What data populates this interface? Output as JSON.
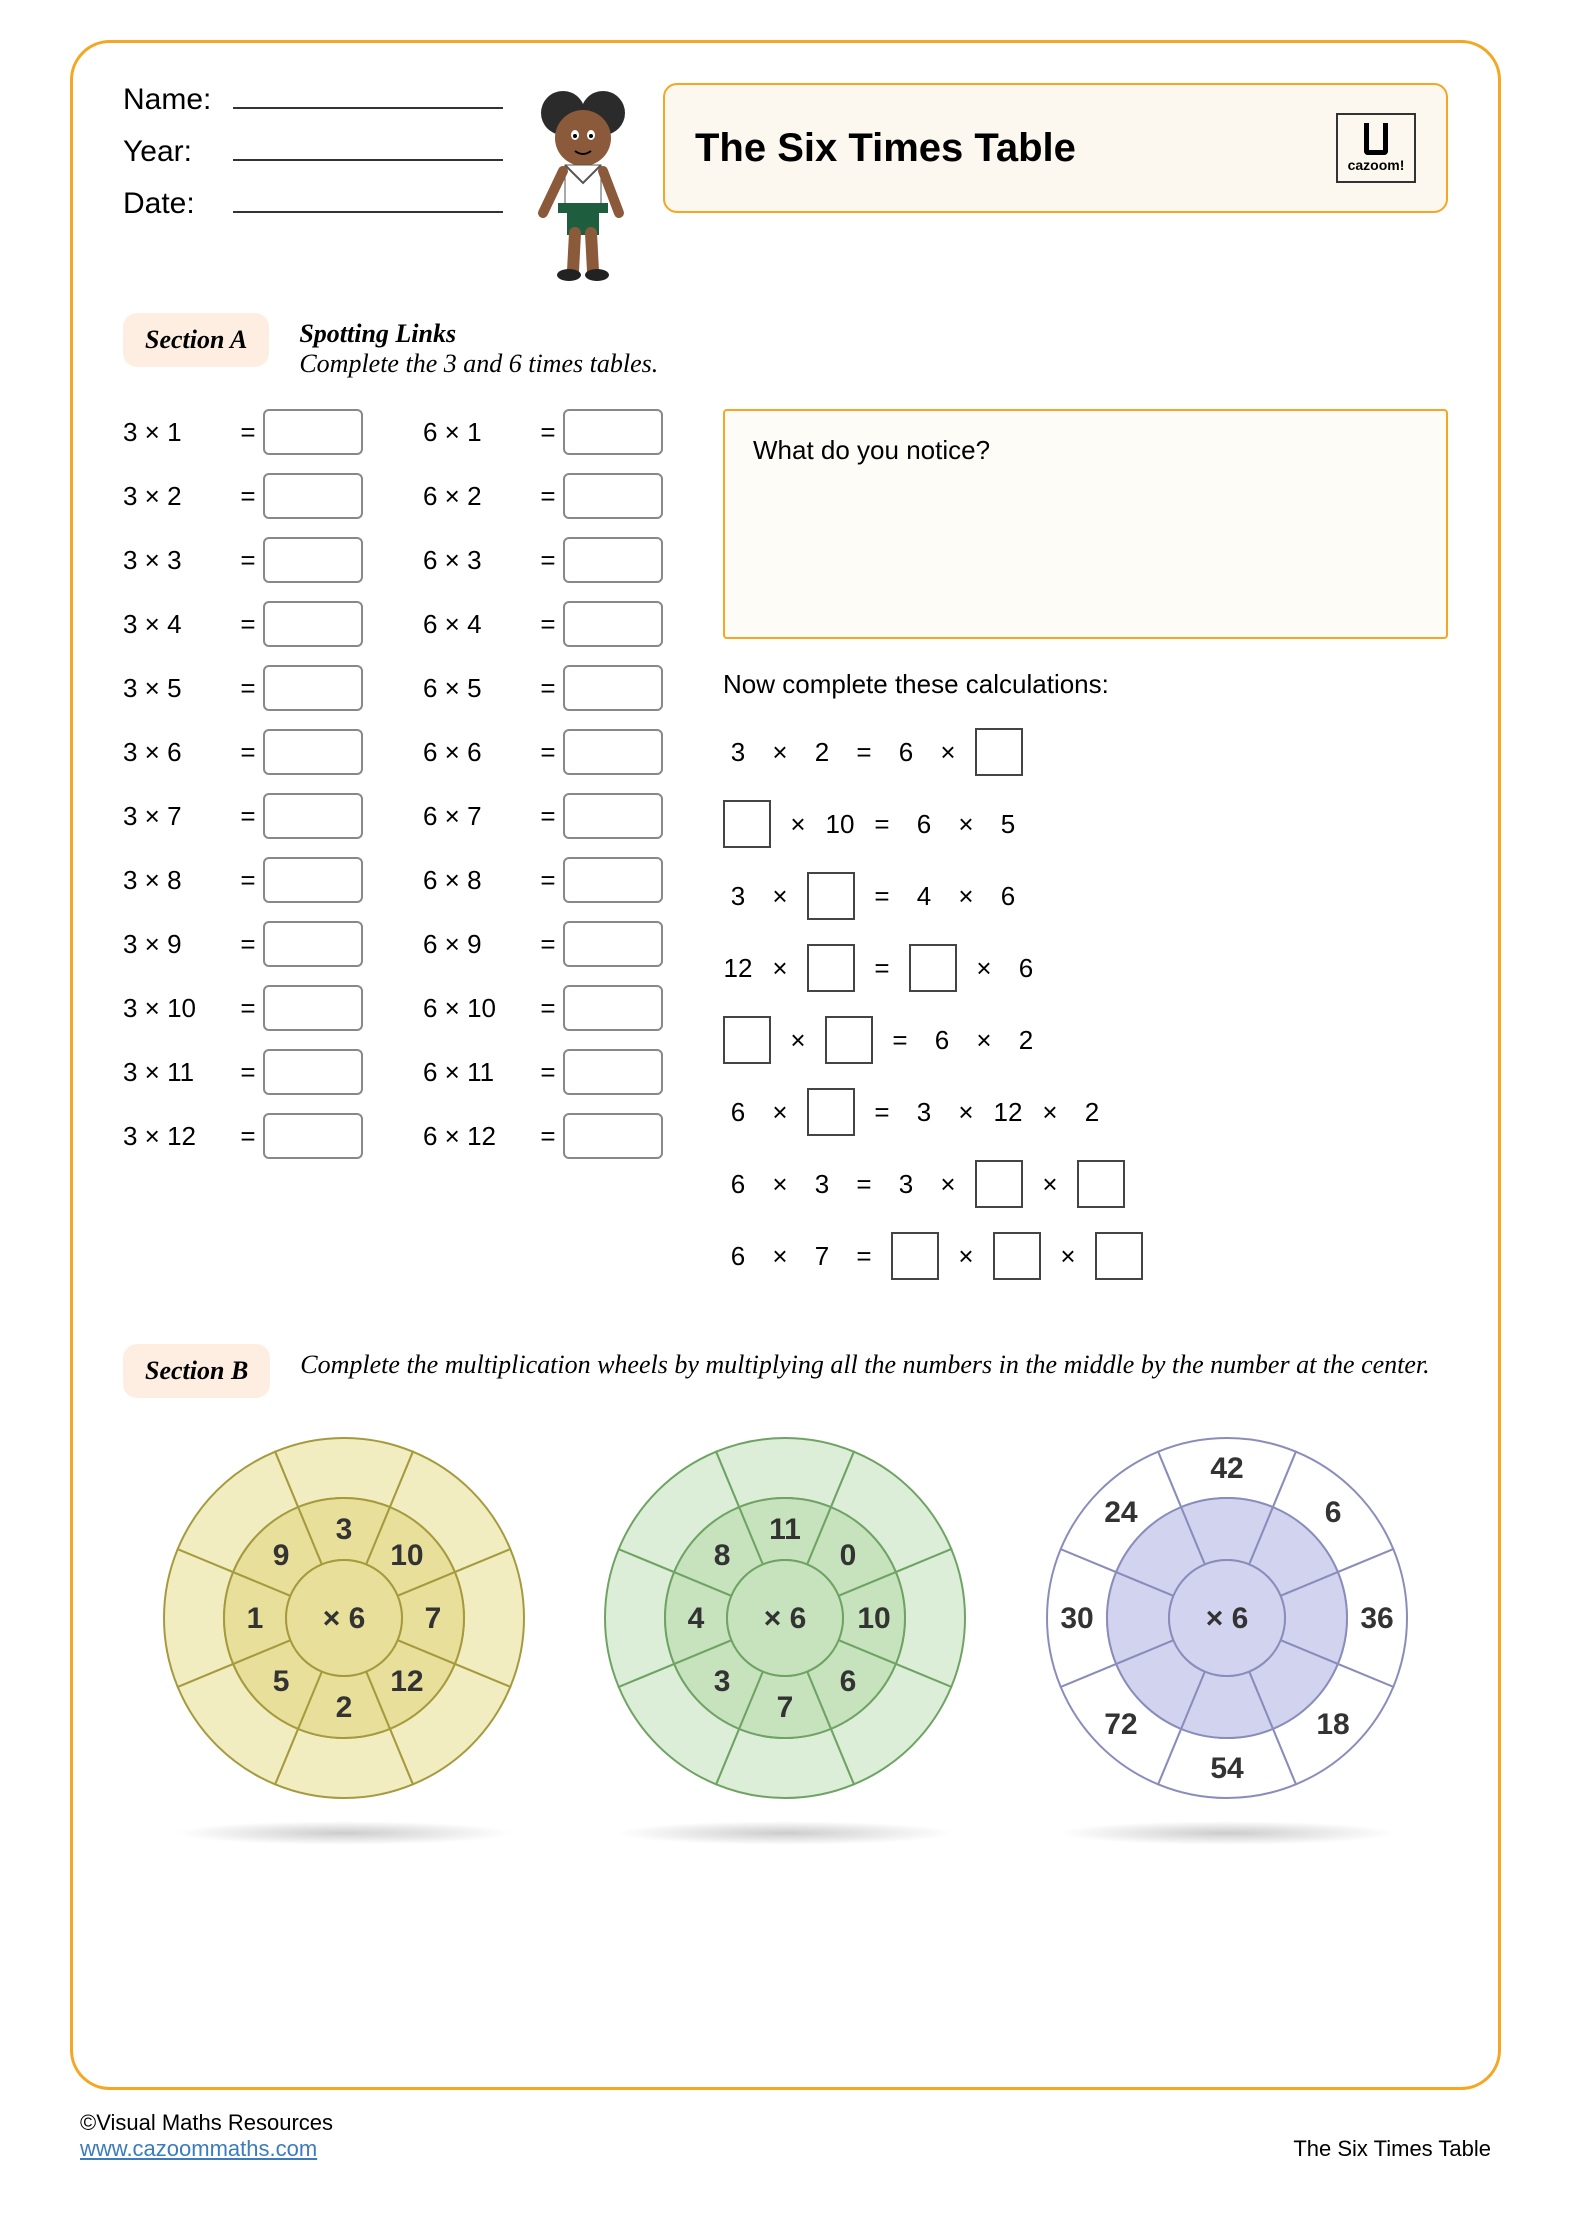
{
  "header": {
    "name_label": "Name:",
    "year_label": "Year:",
    "date_label": "Date:",
    "title": "The Six Times Table",
    "logo_text": "cazoom!"
  },
  "sectionA": {
    "pill": "Section A",
    "desc_title": "Spotting Links",
    "desc_body": "Complete the 3 and 6 times tables.",
    "table3": [
      "3 × 1",
      "3 × 2",
      "3 × 3",
      "3 × 4",
      "3 × 5",
      "3 × 6",
      "3 × 7",
      "3 × 8",
      "3 × 9",
      "3 × 10",
      "3 × 11",
      "3 × 12"
    ],
    "table6": [
      "6 × 1",
      "6 × 2",
      "6 × 3",
      "6 × 4",
      "6 × 5",
      "6 × 6",
      "6 × 7",
      "6 × 8",
      "6 × 9",
      "6 × 10",
      "6 × 11",
      "6 × 12"
    ],
    "notice_q": "What do you notice?",
    "calc_heading": "Now complete these calculations:",
    "calc_rows": [
      [
        {
          "t": "3"
        },
        {
          "t": "×"
        },
        {
          "t": "2"
        },
        {
          "t": "="
        },
        {
          "t": "6"
        },
        {
          "t": "×"
        },
        {
          "box": true
        }
      ],
      [
        {
          "box": true
        },
        {
          "t": "×"
        },
        {
          "t": "10"
        },
        {
          "t": "="
        },
        {
          "t": "6"
        },
        {
          "t": "×"
        },
        {
          "t": "5"
        }
      ],
      [
        {
          "t": "3"
        },
        {
          "t": "×"
        },
        {
          "box": true
        },
        {
          "t": "="
        },
        {
          "t": "4"
        },
        {
          "t": "×"
        },
        {
          "t": "6"
        }
      ],
      [
        {
          "t": "12"
        },
        {
          "t": "×"
        },
        {
          "box": true
        },
        {
          "t": "="
        },
        {
          "box": true
        },
        {
          "t": "×"
        },
        {
          "t": "6"
        }
      ],
      [
        {
          "box": true
        },
        {
          "t": "×"
        },
        {
          "box": true
        },
        {
          "t": "="
        },
        {
          "t": "6"
        },
        {
          "t": "×"
        },
        {
          "t": "2"
        }
      ],
      [
        {
          "t": "6"
        },
        {
          "t": "×"
        },
        {
          "box": true
        },
        {
          "t": "="
        },
        {
          "t": "3"
        },
        {
          "t": "×"
        },
        {
          "t": "12"
        },
        {
          "t": "×"
        },
        {
          "t": "2"
        }
      ],
      [
        {
          "t": "6"
        },
        {
          "t": "×"
        },
        {
          "t": "3"
        },
        {
          "t": "="
        },
        {
          "t": "3"
        },
        {
          "t": "×"
        },
        {
          "box": true
        },
        {
          "t": "×"
        },
        {
          "box": true
        }
      ],
      [
        {
          "t": "6"
        },
        {
          "t": "×"
        },
        {
          "t": "7"
        },
        {
          "t": "="
        },
        {
          "box": true
        },
        {
          "t": "×"
        },
        {
          "box": true
        },
        {
          "t": "×"
        },
        {
          "box": true
        }
      ]
    ]
  },
  "sectionB": {
    "pill": "Section B",
    "desc": "Complete the multiplication wheels by multiplying all the numbers in the middle by the number at the center.",
    "wheels": [
      {
        "center": "× 6",
        "inner": [
          "3",
          "10",
          "7",
          "12",
          "2",
          "5",
          "1",
          "9"
        ],
        "outer": [
          "",
          "",
          "",
          "",
          "",
          "",
          "",
          ""
        ],
        "fill_outer": "#f2edc0",
        "fill_inner": "#e8e09a",
        "stroke": "#a59a3e"
      },
      {
        "center": "× 6",
        "inner": [
          "11",
          "0",
          "10",
          "6",
          "7",
          "3",
          "4",
          "8"
        ],
        "outer": [
          "",
          "",
          "",
          "",
          "",
          "",
          "",
          ""
        ],
        "fill_outer": "#dceed8",
        "fill_inner": "#c6e3bd",
        "stroke": "#6fa363"
      },
      {
        "center": "× 6",
        "inner": [
          "",
          "",
          "",
          "",
          "",
          "",
          "",
          ""
        ],
        "outer": [
          "42",
          "6",
          "36",
          "18",
          "54",
          "72",
          "30",
          "24"
        ],
        "fill_outer": "#ffffff",
        "fill_inner": "#d2d4ef",
        "stroke": "#8a8dbb"
      }
    ]
  },
  "footer": {
    "copyright": "©Visual Maths Resources",
    "url": "www.cazoommaths.com",
    "right": "The Six Times Table"
  },
  "colors": {
    "page_border": "#f5a623",
    "section_pill_bg": "#fdeee1",
    "notice_border": "#f5a623",
    "notice_bg": "#fefcf6"
  }
}
